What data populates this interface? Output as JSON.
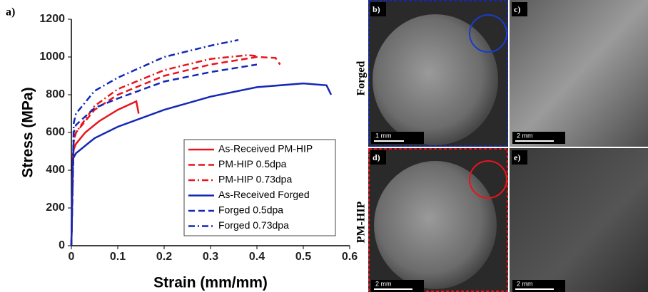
{
  "chart_data": {
    "type": "line",
    "panel_label": "a)",
    "xlabel": "Strain (mm/mm)",
    "ylabel": "Stress (MPa)",
    "xlim": [
      0,
      0.6
    ],
    "xticks": [
      0,
      0.1,
      0.2,
      0.3,
      0.4,
      0.5,
      0.6
    ],
    "ylim": [
      0,
      1200
    ],
    "yticks": [
      0,
      200,
      400,
      600,
      800,
      1000,
      1200
    ],
    "legend": "center right",
    "series": [
      {
        "name": "As-Received PM-HIP",
        "color": "#e8141b",
        "dash": "solid",
        "x": [
          0,
          0.003,
          0.005,
          0.01,
          0.03,
          0.06,
          0.1,
          0.14,
          0.142,
          0.145
        ],
        "values": [
          0,
          480,
          510,
          540,
          600,
          660,
          720,
          765,
          740,
          700
        ]
      },
      {
        "name": "PM-HIP 0.5dpa",
        "color": "#e8141b",
        "dash": "dashed",
        "x": [
          0,
          0.005,
          0.01,
          0.05,
          0.1,
          0.2,
          0.3,
          0.4,
          0.44,
          0.45
        ],
        "values": [
          0,
          550,
          600,
          720,
          800,
          900,
          960,
          1000,
          995,
          960
        ]
      },
      {
        "name": "PM-HIP 0.73dpa",
        "color": "#e8141b",
        "dash": "dashdot",
        "x": [
          0,
          0.005,
          0.01,
          0.05,
          0.1,
          0.2,
          0.3,
          0.38,
          0.4
        ],
        "values": [
          0,
          560,
          600,
          740,
          830,
          930,
          990,
          1010,
          1005
        ]
      },
      {
        "name": "As-Received Forged",
        "color": "#1428b4",
        "dash": "solid",
        "x": [
          0,
          0.003,
          0.01,
          0.05,
          0.1,
          0.2,
          0.3,
          0.4,
          0.5,
          0.55,
          0.56
        ],
        "values": [
          0,
          460,
          490,
          570,
          630,
          720,
          790,
          840,
          860,
          850,
          800
        ]
      },
      {
        "name": "Forged 0.5dpa",
        "color": "#1428b4",
        "dash": "dashed",
        "x": [
          0,
          0.005,
          0.01,
          0.05,
          0.1,
          0.2,
          0.3,
          0.4
        ],
        "values": [
          0,
          600,
          640,
          730,
          780,
          870,
          920,
          960
        ]
      },
      {
        "name": "Forged 0.73dpa",
        "color": "#1428b4",
        "dash": "dashdot",
        "x": [
          0,
          0.005,
          0.01,
          0.05,
          0.1,
          0.2,
          0.3,
          0.36
        ],
        "values": [
          0,
          650,
          700,
          820,
          890,
          1000,
          1060,
          1090
        ]
      }
    ]
  },
  "row_labels": [
    "Forged",
    "PM-HIP"
  ],
  "panels": [
    {
      "label": "b)",
      "scale": "1 mm"
    },
    {
      "label": "c)",
      "scale": "2 mm"
    },
    {
      "label": "d)",
      "scale": "2 mm"
    },
    {
      "label": "e)",
      "scale": "2 mm"
    }
  ]
}
